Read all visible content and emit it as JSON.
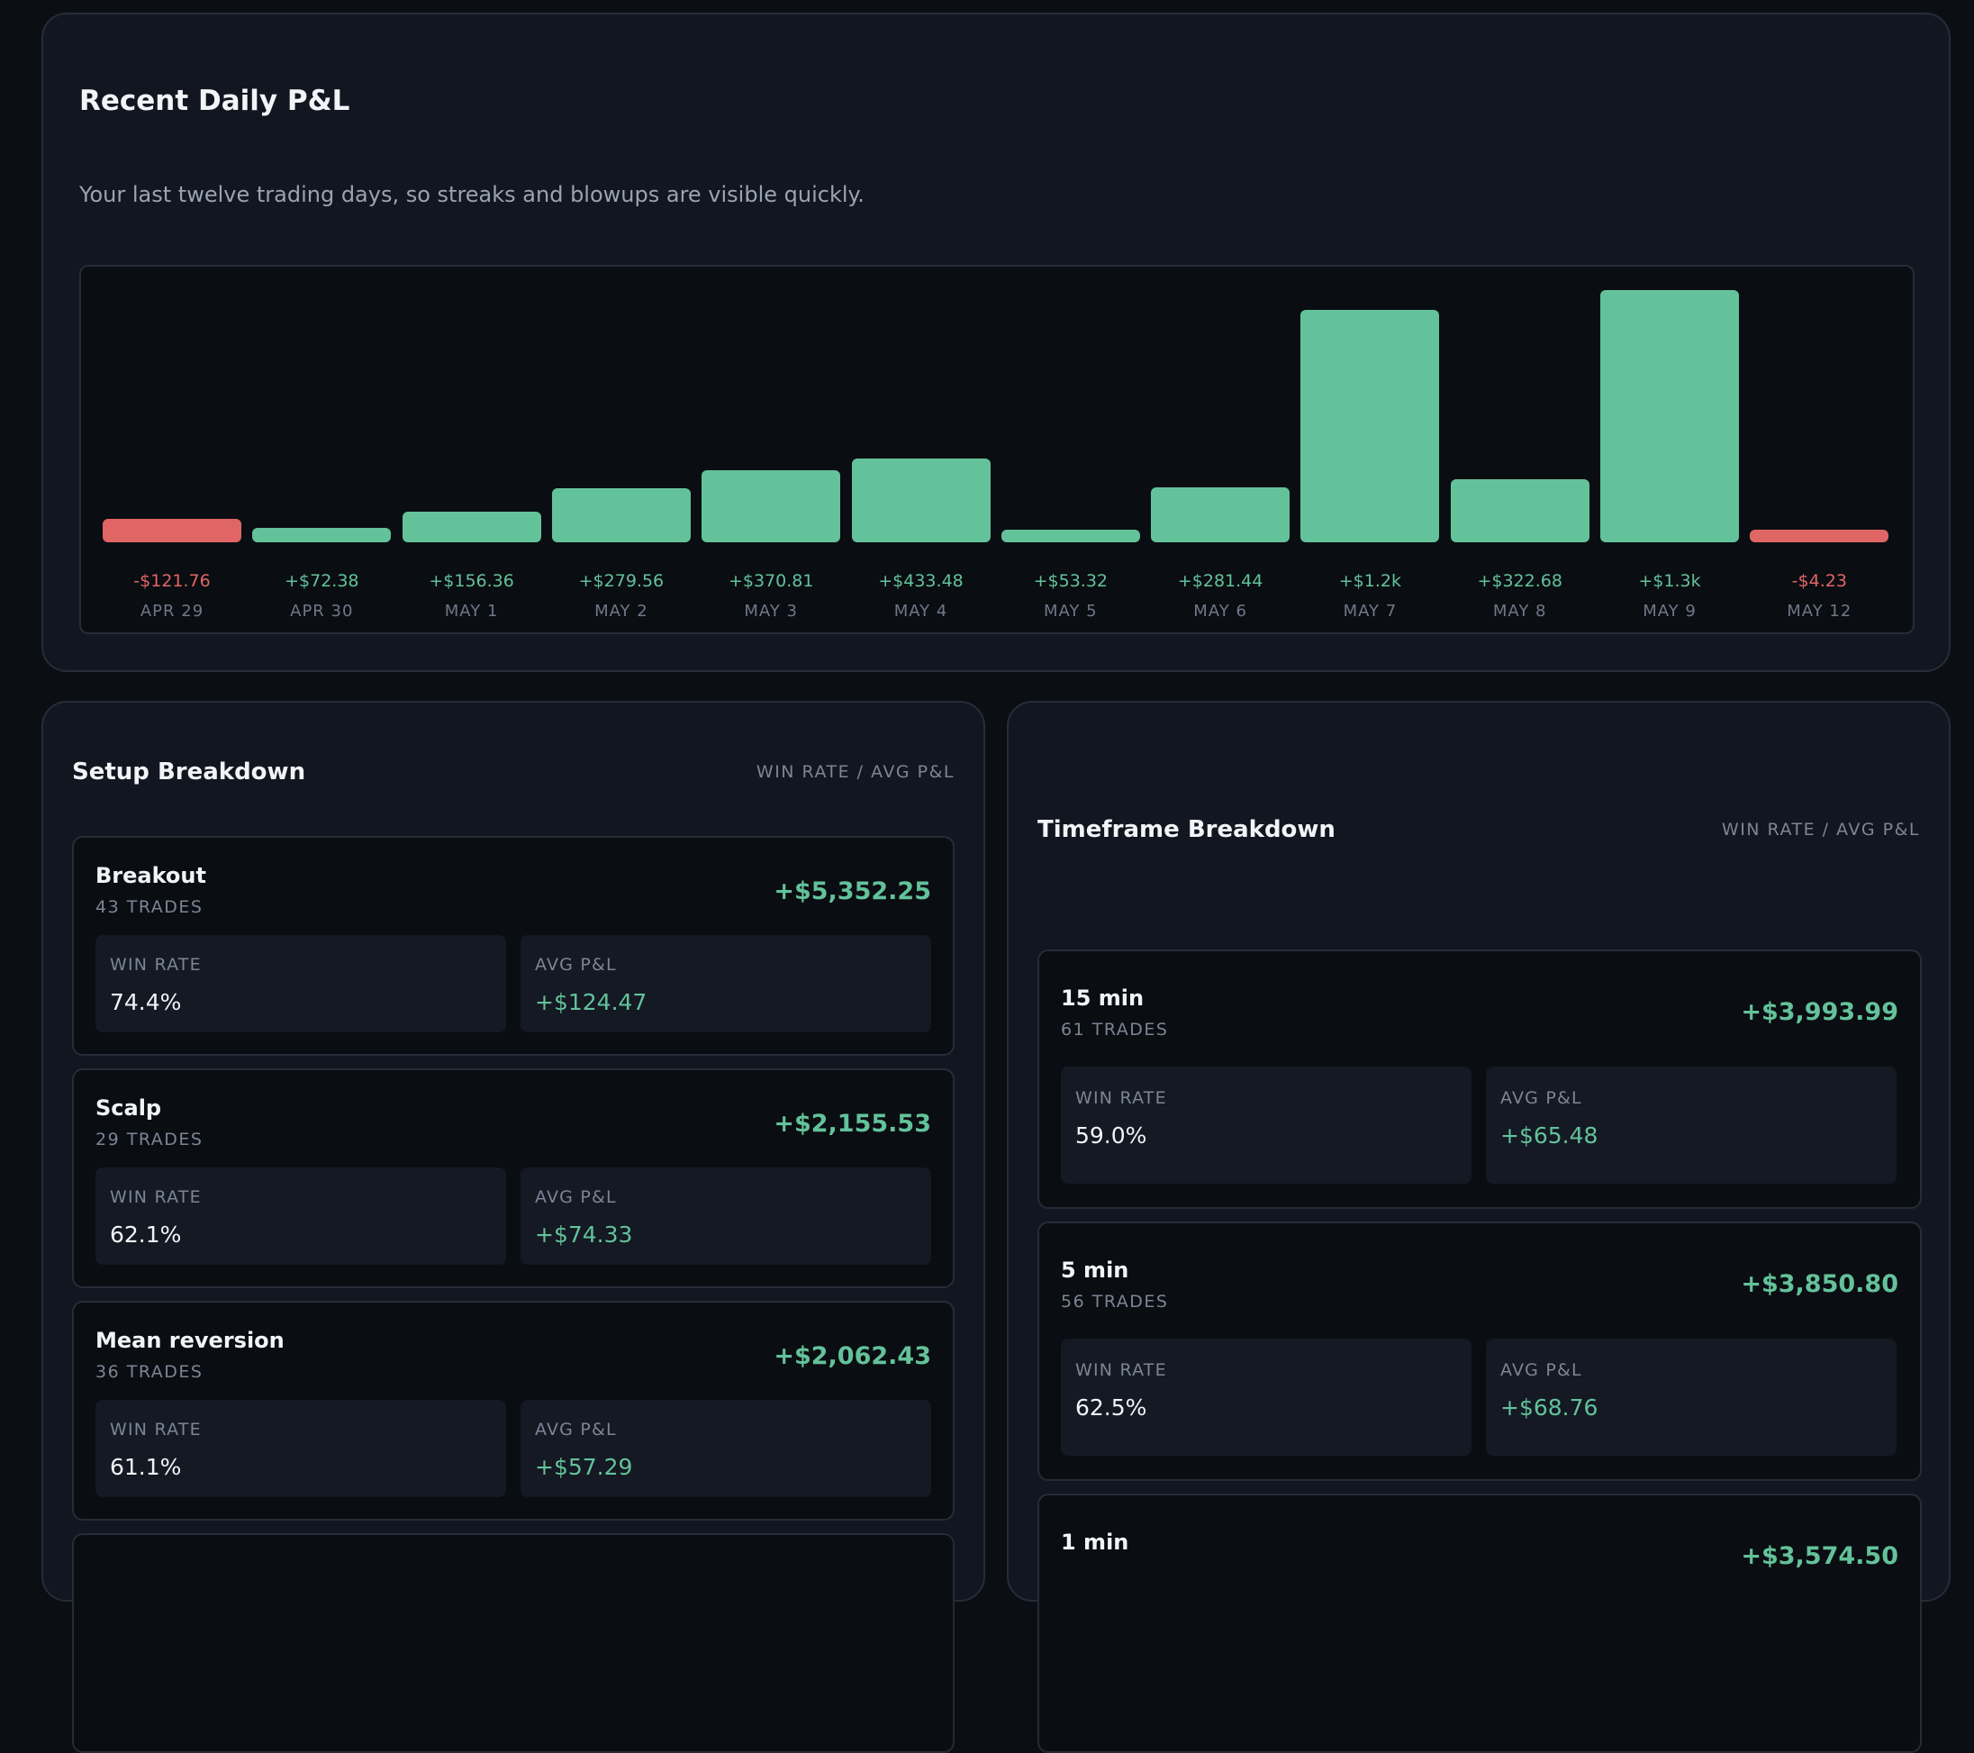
{
  "daily_pnl": {
    "title": "Recent Daily P&L",
    "subtitle": "Your last twelve trading days, so streaks and blowups are visible quickly."
  },
  "chart_data": {
    "type": "bar",
    "categories": [
      "APR 29",
      "APR 30",
      "MAY 1",
      "MAY 2",
      "MAY 3",
      "MAY 4",
      "MAY 5",
      "MAY 6",
      "MAY 7",
      "MAY 8",
      "MAY 9",
      "MAY 12"
    ],
    "values": [
      -121.76,
      72.38,
      156.36,
      279.56,
      370.81,
      433.48,
      53.32,
      281.44,
      1200,
      322.68,
      1300,
      -4.23
    ],
    "value_labels": [
      "-$121.76",
      "+$72.38",
      "+$156.36",
      "+$279.56",
      "+$370.81",
      "+$433.48",
      "+$53.32",
      "+$281.44",
      "+$1.2k",
      "+$322.68",
      "+$1.3k",
      "-$4.23"
    ],
    "colors": {
      "positive": "#63c29a",
      "negative": "#e06666"
    }
  },
  "setup": {
    "title": "Setup Breakdown",
    "hint": "WIN RATE / AVG P&L",
    "items": [
      {
        "name": "Breakout",
        "trades": "43 TRADES",
        "total": "+$5,352.25",
        "win_label": "WIN RATE",
        "win": "74.4%",
        "avg_label": "AVG P&L",
        "avg": "+$124.47"
      },
      {
        "name": "Scalp",
        "trades": "29 TRADES",
        "total": "+$2,155.53",
        "win_label": "WIN RATE",
        "win": "62.1%",
        "avg_label": "AVG P&L",
        "avg": "+$74.33"
      },
      {
        "name": "Mean reversion",
        "trades": "36 TRADES",
        "total": "+$2,062.43",
        "win_label": "WIN RATE",
        "win": "61.1%",
        "avg_label": "AVG P&L",
        "avg": "+$57.29"
      }
    ]
  },
  "timeframe": {
    "title": "Timeframe Breakdown",
    "hint": "WIN RATE / AVG P&L",
    "items": [
      {
        "name": "15 min",
        "trades": "61 TRADES",
        "total": "+$3,993.99",
        "win_label": "WIN RATE",
        "win": "59.0%",
        "avg_label": "AVG P&L",
        "avg": "+$65.48"
      },
      {
        "name": "5 min",
        "trades": "56 TRADES",
        "total": "+$3,850.80",
        "win_label": "WIN RATE",
        "win": "62.5%",
        "avg_label": "AVG P&L",
        "avg": "+$68.76"
      },
      {
        "name": "1 min",
        "total": "+$3,574.50"
      }
    ]
  }
}
